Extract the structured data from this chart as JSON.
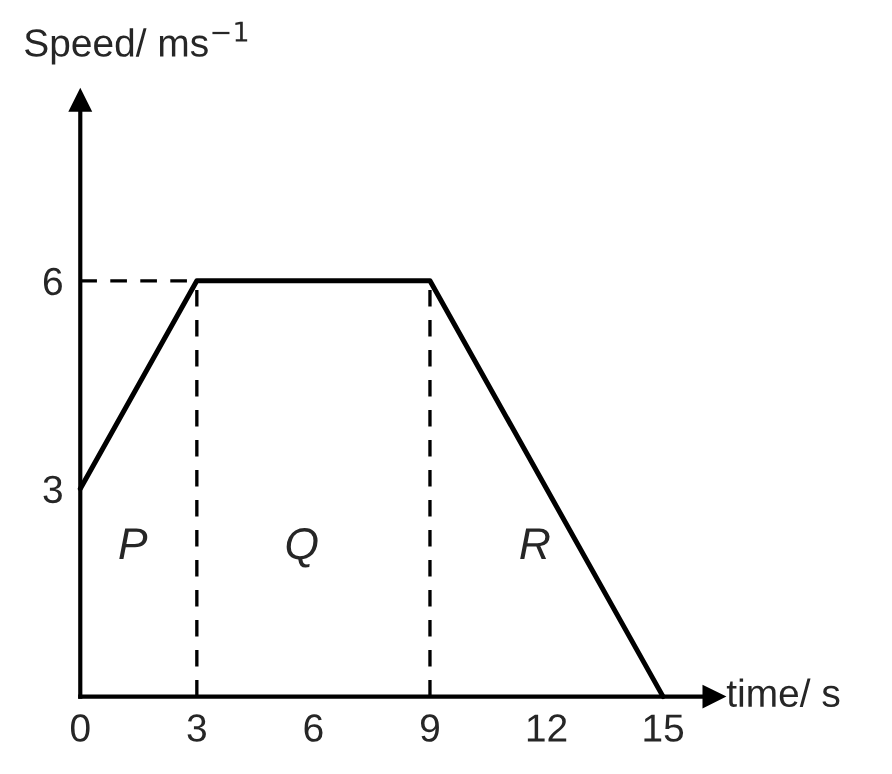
{
  "chart_data": {
    "type": "line",
    "xlabel": "time/ s",
    "ylabel": "Speed/ ms$^{−1}$",
    "x": [
      0,
      3,
      9,
      15
    ],
    "series": [
      {
        "color": "#000000",
        "values": [
          3,
          6,
          6,
          0
        ]
      }
    ],
    "xlim": [
      0,
      16.3
    ],
    "ylim": [
      0,
      8.6
    ],
    "xticks": [
      0,
      3,
      6,
      9,
      12,
      15
    ],
    "yticks": [
      3,
      6
    ],
    "ref_lines": [
      {
        "axis": "y",
        "value": 6,
        "line_style": "dashed",
        "color": "#000000"
      },
      {
        "axis": "x",
        "value": 3,
        "line_style": "dashed",
        "color": "#000000"
      },
      {
        "axis": "x",
        "value": 9,
        "line_style": "dashed",
        "color": "#000000"
      }
    ],
    "annotations": [
      "P",
      "Q",
      "R"
    ],
    "grid": false,
    "legend": false,
    "marker": "none",
    "line_style": "solid"
  }
}
